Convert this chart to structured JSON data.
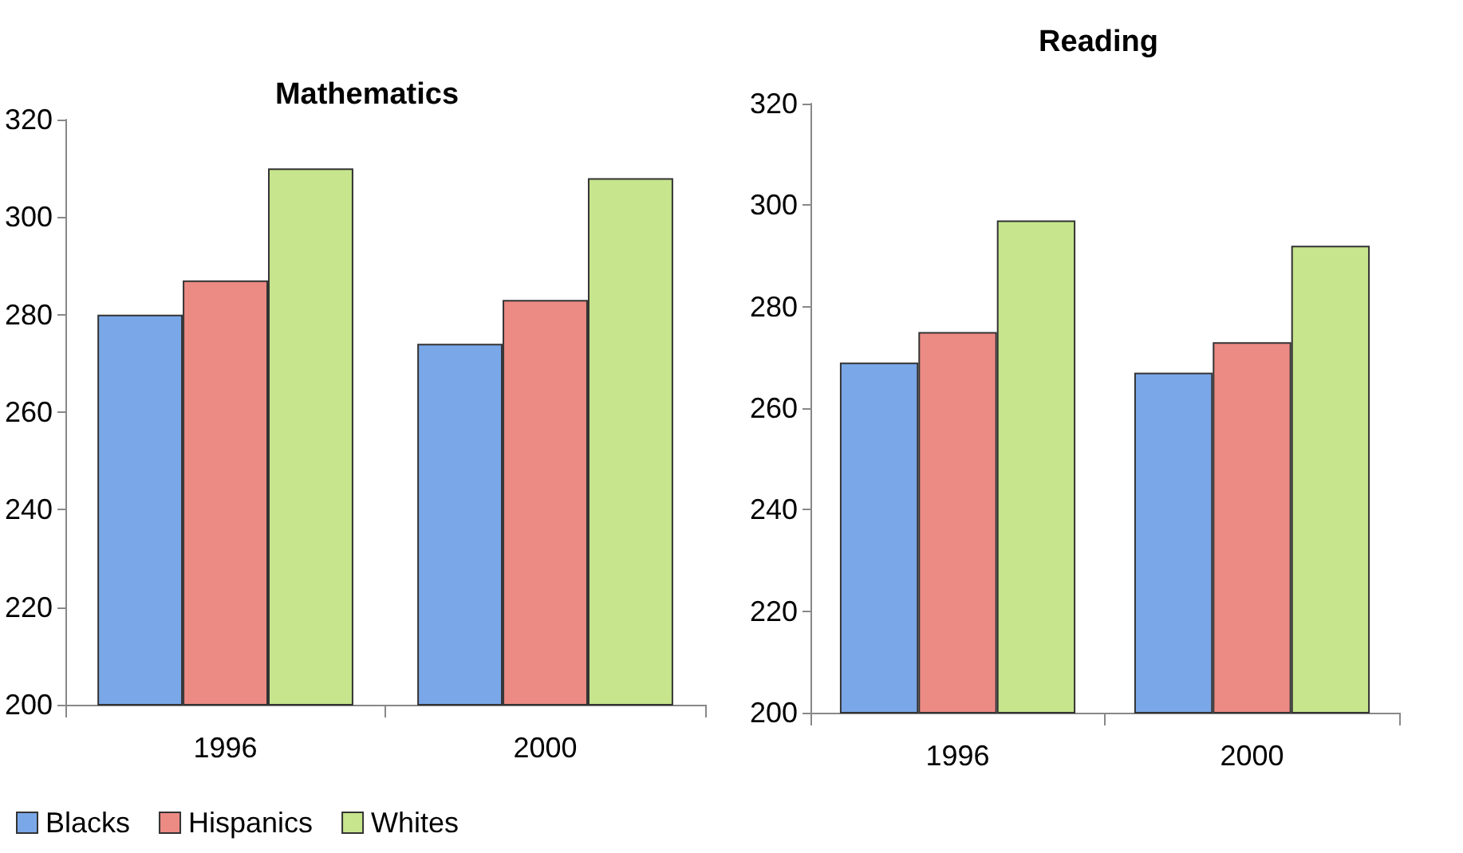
{
  "chart_data": [
    {
      "type": "bar",
      "title": "Mathematics",
      "categories": [
        "1996",
        "2000"
      ],
      "series": [
        {
          "name": "Blacks",
          "color": "#7aa7e8",
          "values": [
            280,
            274
          ]
        },
        {
          "name": "Hispanics",
          "color": "#ec8a84",
          "values": [
            287,
            283
          ]
        },
        {
          "name": "Whites",
          "color": "#c6e58c",
          "values": [
            310,
            308
          ]
        }
      ],
      "ylim": [
        200,
        320
      ],
      "yticks": [
        200,
        220,
        240,
        260,
        280,
        300,
        320
      ],
      "grid": false,
      "legend": "bottom left"
    },
    {
      "type": "bar",
      "title": "Reading",
      "categories": [
        "1996",
        "2000"
      ],
      "series": [
        {
          "color": "#7aa7e8",
          "values": [
            269,
            267
          ]
        },
        {
          "color": "#ec8a84",
          "values": [
            275,
            273
          ]
        },
        {
          "color": "#c6e58c",
          "values": [
            297,
            292
          ]
        }
      ],
      "ylim": [
        200,
        320
      ],
      "yticks": [
        200,
        220,
        240,
        260,
        280,
        300,
        320
      ],
      "grid": false,
      "legend": false
    }
  ]
}
